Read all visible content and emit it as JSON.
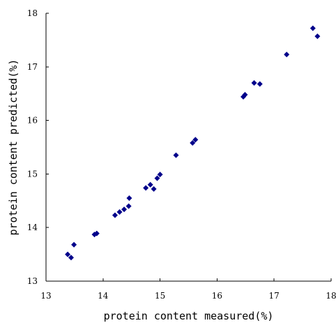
{
  "chart_data": {
    "type": "scatter",
    "title": "",
    "xlabel": "protein content measured(%)",
    "ylabel": "protein content predicted(%)",
    "xlim": [
      13,
      18
    ],
    "ylim": [
      13,
      18
    ],
    "xticks": [
      "13",
      "14",
      "15",
      "16",
      "17",
      "18"
    ],
    "yticks": [
      "13",
      "14",
      "15",
      "16",
      "17",
      "18"
    ],
    "grid": false,
    "legend": "none",
    "marker": "diamond",
    "marker_color": "#00008B",
    "points": [
      {
        "x": 13.38,
        "y": 13.5
      },
      {
        "x": 13.44,
        "y": 13.44
      },
      {
        "x": 13.49,
        "y": 13.68
      },
      {
        "x": 13.85,
        "y": 13.87
      },
      {
        "x": 13.89,
        "y": 13.89
      },
      {
        "x": 14.21,
        "y": 14.23
      },
      {
        "x": 14.29,
        "y": 14.29
      },
      {
        "x": 14.37,
        "y": 14.34
      },
      {
        "x": 14.45,
        "y": 14.4
      },
      {
        "x": 14.46,
        "y": 14.55
      },
      {
        "x": 14.75,
        "y": 14.74
      },
      {
        "x": 14.83,
        "y": 14.8
      },
      {
        "x": 14.89,
        "y": 14.72
      },
      {
        "x": 14.95,
        "y": 14.92
      },
      {
        "x": 15.0,
        "y": 14.99
      },
      {
        "x": 15.28,
        "y": 15.35
      },
      {
        "x": 15.57,
        "y": 15.58
      },
      {
        "x": 15.62,
        "y": 15.64
      },
      {
        "x": 16.46,
        "y": 16.44
      },
      {
        "x": 16.49,
        "y": 16.48
      },
      {
        "x": 16.65,
        "y": 16.7
      },
      {
        "x": 16.75,
        "y": 16.68
      },
      {
        "x": 17.22,
        "y": 17.23
      },
      {
        "x": 17.68,
        "y": 17.72
      },
      {
        "x": 17.76,
        "y": 17.57
      }
    ]
  }
}
